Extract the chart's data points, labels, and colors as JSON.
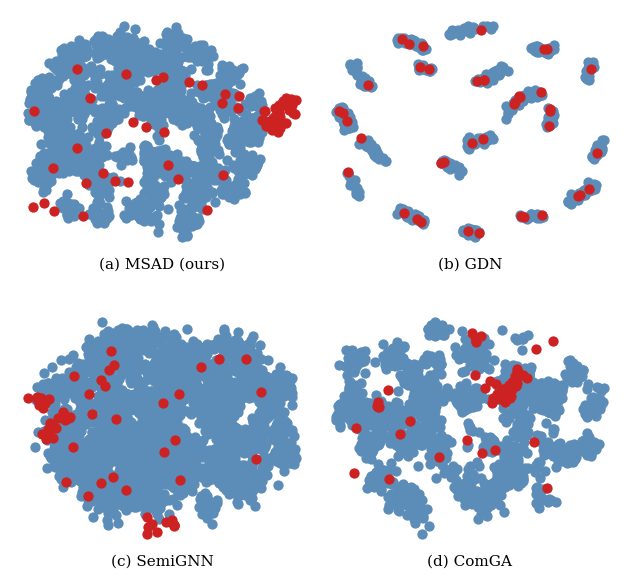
{
  "fig_width": 6.32,
  "fig_height": 5.82,
  "dpi": 100,
  "background_color": "#ffffff",
  "blue_color": "#5B8DB8",
  "red_color": "#CC2222",
  "blue_alpha": 1.0,
  "red_alpha": 1.0,
  "blue_size": 55,
  "red_size": 55,
  "captions": [
    "(a) MSAD (ours)",
    "(b) GDN",
    "(c) SemiGNN",
    "(d) ComGA"
  ],
  "caption_fontsize": 11,
  "seed": 42
}
